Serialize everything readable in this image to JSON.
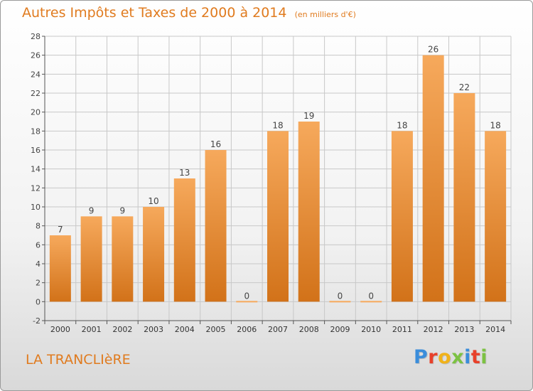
{
  "header": {
    "title": "Autres Impôts et Taxes de 2000 à 2014",
    "subtitle": "(en milliers d'€)"
  },
  "footer": {
    "commune": "LA TRANCLIèRE",
    "logo": {
      "letters": [
        "P",
        "r",
        "o",
        "x",
        "i",
        "t",
        "i"
      ],
      "colors": [
        "#3a8ddb",
        "#e8402a",
        "#f0b21a",
        "#7cc242",
        "#3a8ddb",
        "#e8402a",
        "#7cc242"
      ]
    }
  },
  "colors": {
    "bar_top": "#f6a95c",
    "bar_bottom": "#d27219",
    "text_orange": "#e07b1f",
    "grid": "#c8c8c8"
  },
  "chart_data": {
    "type": "bar",
    "categories": [
      "2000",
      "2001",
      "2002",
      "2003",
      "2004",
      "2005",
      "2006",
      "2007",
      "2008",
      "2009",
      "2010",
      "2011",
      "2012",
      "2013",
      "2014"
    ],
    "values": [
      7,
      9,
      9,
      10,
      13,
      16,
      0,
      18,
      19,
      0,
      0,
      18,
      26,
      22,
      18
    ],
    "yticks": [
      -2,
      0,
      2,
      4,
      6,
      8,
      10,
      12,
      14,
      16,
      18,
      20,
      22,
      24,
      26,
      28
    ],
    "ylim": [
      -2,
      28
    ],
    "grid": true,
    "data_labels": [
      "7",
      "9",
      "9",
      "10",
      "13",
      "16",
      "0",
      "18",
      "19",
      "0",
      "0",
      "18",
      "26",
      "22",
      "18"
    ]
  }
}
